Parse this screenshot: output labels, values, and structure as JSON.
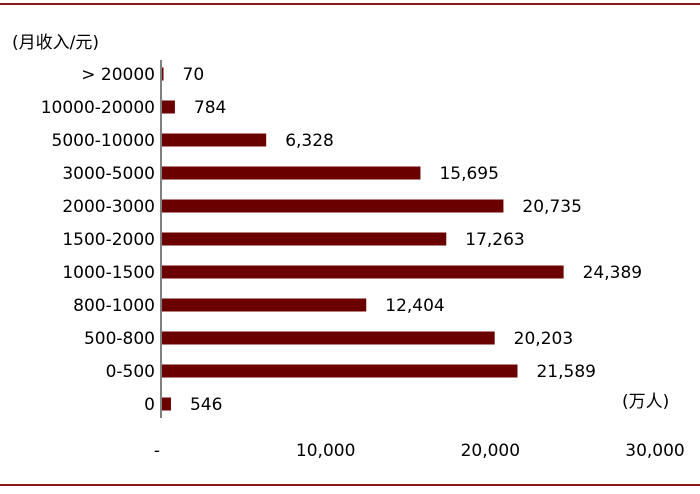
{
  "chart_data": {
    "type": "bar",
    "orientation": "horizontal",
    "ylabel": "(月收入/元)",
    "xlabel": "(万人)",
    "categories": [
      "> 20000",
      "10000-20000",
      "5000-10000",
      "3000-5000",
      "2000-3000",
      "1500-2000",
      "1000-1500",
      "800-1000",
      "500-800",
      "0-500",
      "0"
    ],
    "values": [
      70,
      784,
      6328,
      15695,
      20735,
      17263,
      24389,
      12404,
      20203,
      21589,
      546
    ],
    "value_labels": [
      "70",
      "784",
      "6,328",
      "15,695",
      "20,735",
      "17,263",
      "24,389",
      "12,404",
      "20,203",
      "21,589",
      "546"
    ],
    "xlim": [
      0,
      30000
    ],
    "xticks": [
      0,
      10000,
      20000,
      30000
    ],
    "xtick_labels": [
      "-",
      "10,000",
      "20,000",
      "30,000"
    ],
    "grid": false,
    "bar_color": "#6b0000",
    "rule_color": "#8b1a1a"
  }
}
